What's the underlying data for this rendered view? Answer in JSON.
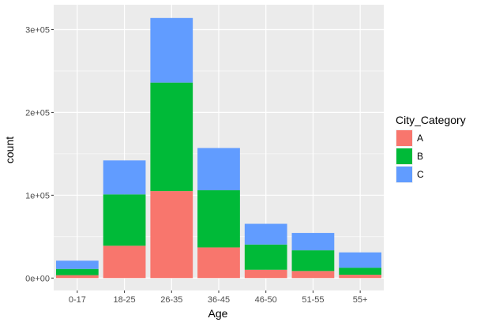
{
  "chart_data": {
    "type": "bar",
    "stacked": true,
    "categories": [
      "0-17",
      "18-25",
      "26-35",
      "36-45",
      "46-50",
      "51-55",
      "55+"
    ],
    "series": [
      {
        "name": "A",
        "values": [
          3500,
          39000,
          105000,
          37000,
          10000,
          8500,
          4000
        ],
        "color": "#F8766D"
      },
      {
        "name": "B",
        "values": [
          7500,
          62000,
          131000,
          69000,
          30500,
          25000,
          8500
        ],
        "color": "#00BA38"
      },
      {
        "name": "C",
        "values": [
          10000,
          41000,
          78000,
          51000,
          25000,
          21000,
          18500
        ],
        "color": "#619CFF"
      }
    ],
    "xlabel": "Age",
    "ylabel": "count",
    "yticks": [
      0,
      100000,
      200000,
      300000
    ],
    "ytick_labels": [
      "0e+00",
      "1e+05",
      "2e+05",
      "3e+05"
    ],
    "ylim": [
      -15000,
      330000
    ],
    "grid": true,
    "legend": {
      "title": "City_Category",
      "position": "right"
    },
    "panel_background": "#EBEBEB",
    "grid_color": "#FFFFFF"
  }
}
